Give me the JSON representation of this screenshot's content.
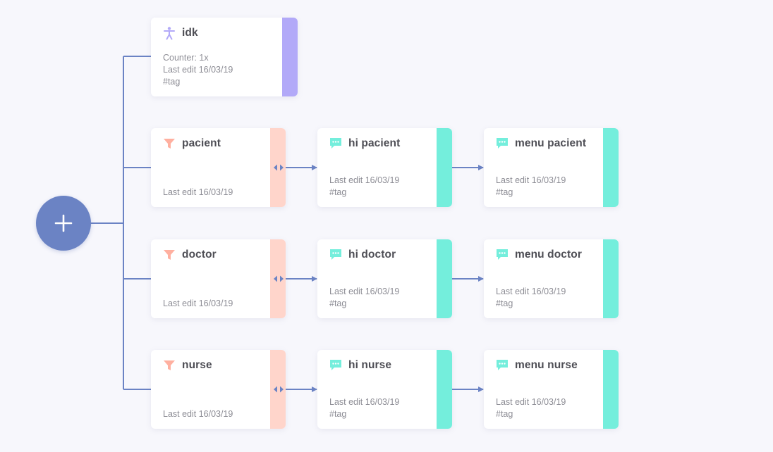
{
  "colors": {
    "connector": "#6b83c4",
    "add_button": "#6b83c4",
    "user_accent": "#b2a9f8",
    "filter_accent": "#ffd5cb",
    "message_accent": "#74eedc"
  },
  "add_button": {
    "icon": "plus-icon"
  },
  "root_card": {
    "title": "idk",
    "icon": "person-icon",
    "counter": "Counter: 1x",
    "last_edit": "Last edit 16/03/19",
    "tag": "#tag"
  },
  "rows": [
    {
      "filter": {
        "title": "pacient",
        "icon": "funnel-icon",
        "last_edit": "Last edit 16/03/19"
      },
      "messages": [
        {
          "title": "hi pacient",
          "icon": "chat-icon",
          "last_edit": "Last edit 16/03/19",
          "tag": "#tag"
        },
        {
          "title": "menu pacient",
          "icon": "chat-icon",
          "last_edit": "Last edit 16/03/19",
          "tag": "#tag"
        }
      ]
    },
    {
      "filter": {
        "title": "doctor",
        "icon": "funnel-icon",
        "last_edit": "Last edit 16/03/19"
      },
      "messages": [
        {
          "title": "hi doctor",
          "icon": "chat-icon",
          "last_edit": "Last edit 16/03/19",
          "tag": "#tag"
        },
        {
          "title": "menu doctor",
          "icon": "chat-icon",
          "last_edit": "Last edit 16/03/19",
          "tag": "#tag"
        }
      ]
    },
    {
      "filter": {
        "title": "nurse",
        "icon": "funnel-icon",
        "last_edit": "Last edit 16/03/19"
      },
      "messages": [
        {
          "title": "hi nurse",
          "icon": "chat-icon",
          "last_edit": "Last edit 16/03/19",
          "tag": "#tag"
        },
        {
          "title": "menu nurse",
          "icon": "chat-icon",
          "last_edit": "Last edit 16/03/19",
          "tag": "#tag"
        }
      ]
    }
  ]
}
